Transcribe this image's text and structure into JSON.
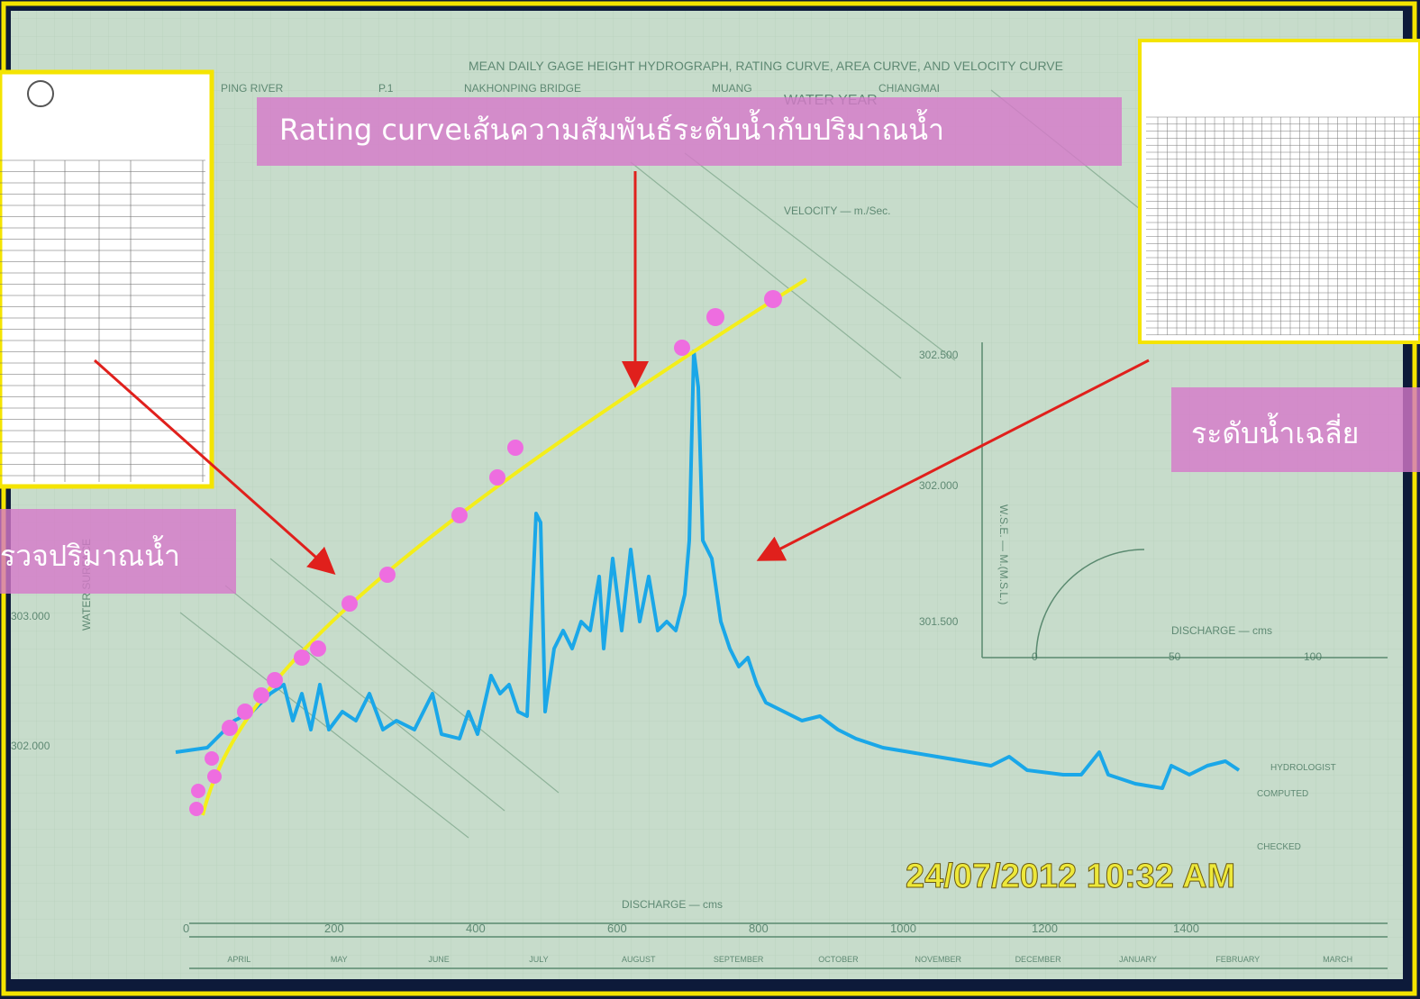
{
  "annotations": {
    "rating_curve": "Rating curveเส้นความสัมพันธ์ระดับน้ำกับปริมาณน้ำ",
    "average_level": "ระดับน้ำเฉลี่ย",
    "discharge_survey": "รวจปริมาณน้ำ"
  },
  "timestamp": "24/07/2012 10:32 AM",
  "photo": {
    "title": "MEAN DAILY GAGE HEIGHT HYDROGRAPH, RATING CURVE, AREA CURVE, AND VELOCITY CURVE",
    "river": "PING RIVER",
    "station": "P.1",
    "location": "NAKHONPING BRIDGE",
    "district": "MUANG",
    "province": "CHIANGMAI",
    "water_year": "WATER YEAR",
    "velocity_label": "VELOCITY — m./Sec.",
    "x_axis_label": "DISCHARGE — cms",
    "x_tick_labels": [
      "0",
      "200",
      "400",
      "600",
      "800",
      "1000",
      "1200",
      "1400"
    ],
    "y_tick_labels": [
      "303.000",
      "302.000"
    ],
    "y_axis_label": "WATER SURFACE",
    "inset_y_labels": [
      "302.500",
      "302.000",
      "301.500"
    ],
    "inset_y_axis_label": "W.S.E. — M.(M.S.L.)",
    "inset_x_label": "DISCHARGE — cms",
    "inset_x_ticks": [
      "0",
      "50",
      "100"
    ],
    "months": [
      "APRIL",
      "MAY",
      "JUNE",
      "JULY",
      "AUGUST",
      "SEPTEMBER",
      "OCTOBER",
      "NOVEMBER",
      "DECEMBER",
      "JANUARY",
      "FEBRUARY",
      "MARCH"
    ],
    "hydrologist": "HYDROLOGIST",
    "computed": "COMPUTED",
    "checked": "CHECKED"
  }
}
